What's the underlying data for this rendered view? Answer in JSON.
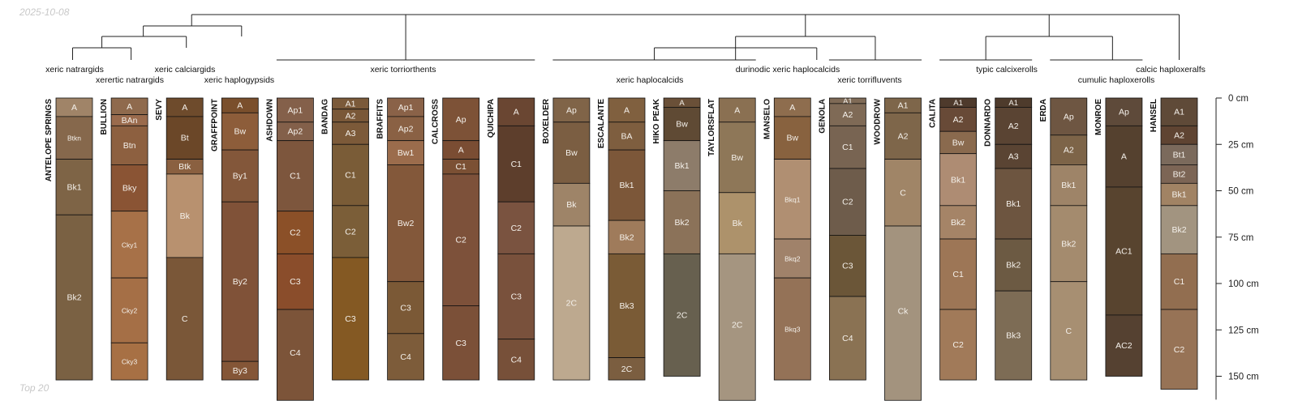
{
  "date_label": "2025-10-08",
  "footer_label": "Top 20",
  "chart_data": {
    "type": "soil-profile-sketch",
    "title": "",
    "depth_axis": {
      "label_unit": "cm",
      "ylim": [
        0,
        160
      ],
      "ticks": [
        {
          "value": 0,
          "label": "0 cm"
        },
        {
          "value": 25,
          "label": "25 cm"
        },
        {
          "value": 50,
          "label": "50 cm"
        },
        {
          "value": 75,
          "label": "75 cm"
        },
        {
          "value": 100,
          "label": "100 cm"
        },
        {
          "value": 125,
          "label": "125 cm"
        },
        {
          "value": 150,
          "label": "150 cm"
        }
      ]
    },
    "taxa_groups": [
      {
        "label": "xeric natrargids",
        "start": 0,
        "end": 0
      },
      {
        "label": "xerertic natrargids",
        "start": 1,
        "end": 1
      },
      {
        "label": "xeric calciargids",
        "start": 2,
        "end": 2
      },
      {
        "label": "xeric haplogypsids",
        "start": 3,
        "end": 3
      },
      {
        "label": "xeric torriorthents",
        "start": 4,
        "end": 8
      },
      {
        "label": "xeric haplocalcids",
        "start": 9,
        "end": 12
      },
      {
        "label": "durinodic xeric haplocalcids",
        "start": 13,
        "end": 13
      },
      {
        "label": "xeric torrifluvents",
        "start": 14,
        "end": 15
      },
      {
        "label": "typic calcixerolls",
        "start": 16,
        "end": 17
      },
      {
        "label": "cumulic haploxerolls",
        "start": 18,
        "end": 19
      },
      {
        "label": "calcic haploxeralfs",
        "start": 20,
        "end": 20
      }
    ],
    "profiles": [
      {
        "name": "ANTELOPE SPRINGS",
        "horizons": [
          {
            "name": "A",
            "top": 0,
            "bottom": 10,
            "color": "#a08468"
          },
          {
            "name": "Btkn",
            "top": 10,
            "bottom": 33,
            "color": "#86684c"
          },
          {
            "name": "Bk1",
            "top": 33,
            "bottom": 63,
            "color": "#7e6446"
          },
          {
            "name": "Bk2",
            "top": 63,
            "bottom": 152,
            "color": "#7a6143"
          }
        ]
      },
      {
        "name": "BULLION",
        "horizons": [
          {
            "name": "A",
            "top": 0,
            "bottom": 9,
            "color": "#8f6a4d"
          },
          {
            "name": "BAn",
            "top": 9,
            "bottom": 15,
            "color": "#9a6b4d"
          },
          {
            "name": "Btn",
            "top": 15,
            "bottom": 36,
            "color": "#8d6040"
          },
          {
            "name": "Bky",
            "top": 36,
            "bottom": 61,
            "color": "#8a5434"
          },
          {
            "name": "Cky1",
            "top": 61,
            "bottom": 97,
            "color": "#a77148"
          },
          {
            "name": "Cky2",
            "top": 97,
            "bottom": 132,
            "color": "#a56f46"
          },
          {
            "name": "Cky3",
            "top": 132,
            "bottom": 152,
            "color": "#a77044"
          }
        ]
      },
      {
        "name": "SEVY",
        "horizons": [
          {
            "name": "A",
            "top": 0,
            "bottom": 10,
            "color": "#6e4b2c"
          },
          {
            "name": "Bt",
            "top": 10,
            "bottom": 33,
            "color": "#6b4728"
          },
          {
            "name": "Btk",
            "top": 33,
            "bottom": 41,
            "color": "#8a6040"
          },
          {
            "name": "Bk",
            "top": 41,
            "bottom": 86,
            "color": "#b8916f"
          },
          {
            "name": "C",
            "top": 86,
            "bottom": 152,
            "color": "#7a5738"
          }
        ]
      },
      {
        "name": "GRAFFPOINT",
        "horizons": [
          {
            "name": "A",
            "top": 0,
            "bottom": 8,
            "color": "#7a4f2c"
          },
          {
            "name": "Bw",
            "top": 8,
            "bottom": 28,
            "color": "#8d5d3a"
          },
          {
            "name": "By1",
            "top": 28,
            "bottom": 56,
            "color": "#83573a"
          },
          {
            "name": "By2",
            "top": 56,
            "bottom": 142,
            "color": "#805238"
          },
          {
            "name": "By3",
            "top": 142,
            "bottom": 152,
            "color": "#845637"
          }
        ]
      },
      {
        "name": "ASHDOWN",
        "horizons": [
          {
            "name": "Ap1",
            "top": 0,
            "bottom": 13,
            "color": "#84604a"
          },
          {
            "name": "Ap2",
            "top": 13,
            "bottom": 23,
            "color": "#83604a"
          },
          {
            "name": "C1",
            "top": 23,
            "bottom": 61,
            "color": "#7d563d"
          },
          {
            "name": "C2",
            "top": 61,
            "bottom": 84,
            "color": "#8b5028"
          },
          {
            "name": "C3",
            "top": 84,
            "bottom": 114,
            "color": "#8a4d2b"
          },
          {
            "name": "C4",
            "top": 114,
            "bottom": 163,
            "color": "#7c5439"
          }
        ]
      },
      {
        "name": "BANDAG",
        "horizons": [
          {
            "name": "A1",
            "top": 0,
            "bottom": 6,
            "color": "#7b5a3a"
          },
          {
            "name": "A2",
            "top": 6,
            "bottom": 13,
            "color": "#7a5838"
          },
          {
            "name": "A3",
            "top": 13,
            "bottom": 25,
            "color": "#7c5a39"
          },
          {
            "name": "C1",
            "top": 25,
            "bottom": 58,
            "color": "#7a5c37"
          },
          {
            "name": "C2",
            "top": 58,
            "bottom": 86,
            "color": "#7b5e38"
          },
          {
            "name": "C3",
            "top": 86,
            "bottom": 152,
            "color": "#845923"
          }
        ]
      },
      {
        "name": "BRAFFITS",
        "horizons": [
          {
            "name": "Ap1",
            "top": 0,
            "bottom": 10,
            "color": "#8a6248"
          },
          {
            "name": "Ap2",
            "top": 10,
            "bottom": 23,
            "color": "#8a6144"
          },
          {
            "name": "Bw1",
            "top": 23,
            "bottom": 36,
            "color": "#9b6c4c"
          },
          {
            "name": "Bw2",
            "top": 36,
            "bottom": 99,
            "color": "#83583a"
          },
          {
            "name": "C3",
            "top": 99,
            "bottom": 127,
            "color": "#7b5936"
          },
          {
            "name": "C4",
            "top": 127,
            "bottom": 152,
            "color": "#7d5c3a"
          }
        ]
      },
      {
        "name": "CALCROSS",
        "horizons": [
          {
            "name": "Ap",
            "top": 0,
            "bottom": 23,
            "color": "#7d5237"
          },
          {
            "name": "A",
            "top": 23,
            "bottom": 33,
            "color": "#7a4d33"
          },
          {
            "name": "C1",
            "top": 33,
            "bottom": 41,
            "color": "#7b5034"
          },
          {
            "name": "C2",
            "top": 41,
            "bottom": 112,
            "color": "#7d513a"
          },
          {
            "name": "C3",
            "top": 112,
            "bottom": 152,
            "color": "#7b5038"
          }
        ]
      },
      {
        "name": "QUICHIPA",
        "horizons": [
          {
            "name": "A",
            "top": 0,
            "bottom": 15,
            "color": "#6a4632"
          },
          {
            "name": "C1",
            "top": 15,
            "bottom": 56,
            "color": "#5d3e2c"
          },
          {
            "name": "C2",
            "top": 56,
            "bottom": 84,
            "color": "#7a5340"
          },
          {
            "name": "C3",
            "top": 84,
            "bottom": 130,
            "color": "#79513c"
          },
          {
            "name": "C4",
            "top": 130,
            "bottom": 152,
            "color": "#775039"
          }
        ]
      },
      {
        "name": "BOXELDER",
        "horizons": [
          {
            "name": "Ap",
            "top": 0,
            "bottom": 13,
            "color": "#806448"
          },
          {
            "name": "Bw",
            "top": 13,
            "bottom": 46,
            "color": "#7b5e42"
          },
          {
            "name": "Bk",
            "top": 46,
            "bottom": 69,
            "color": "#9e8468"
          },
          {
            "name": "2C",
            "top": 69,
            "bottom": 152,
            "color": "#bda98f"
          }
        ]
      },
      {
        "name": "ESCALANTE",
        "horizons": [
          {
            "name": "A",
            "top": 0,
            "bottom": 13,
            "color": "#80603f"
          },
          {
            "name": "BA",
            "top": 13,
            "bottom": 28,
            "color": "#7e5e3f"
          },
          {
            "name": "Bk1",
            "top": 28,
            "bottom": 66,
            "color": "#7c5739"
          },
          {
            "name": "Bk2",
            "top": 66,
            "bottom": 84,
            "color": "#9f7b5b"
          },
          {
            "name": "Bk3",
            "top": 84,
            "bottom": 140,
            "color": "#7a5b36"
          },
          {
            "name": "2C",
            "top": 140,
            "bottom": 152,
            "color": "#7b5e40"
          }
        ]
      },
      {
        "name": "HIKO PEAK",
        "horizons": [
          {
            "name": "A",
            "top": 0,
            "bottom": 5,
            "color": "#6a5038"
          },
          {
            "name": "Bw",
            "top": 5,
            "bottom": 23,
            "color": "#5f4a34"
          },
          {
            "name": "Bk1",
            "top": 23,
            "bottom": 50,
            "color": "#8d7c6a"
          },
          {
            "name": "Bk2",
            "top": 50,
            "bottom": 84,
            "color": "#8b7259"
          },
          {
            "name": "2C",
            "top": 84,
            "bottom": 150,
            "color": "#67604f"
          }
        ]
      },
      {
        "name": "TAYLORSFLAT",
        "horizons": [
          {
            "name": "A",
            "top": 0,
            "bottom": 13,
            "color": "#8a7052"
          },
          {
            "name": "Bw",
            "top": 13,
            "bottom": 51,
            "color": "#8e7758"
          },
          {
            "name": "Bk",
            "top": 51,
            "bottom": 84,
            "color": "#ad926b"
          },
          {
            "name": "2C",
            "top": 84,
            "bottom": 163,
            "color": "#a59580"
          }
        ]
      },
      {
        "name": "MANSELO",
        "horizons": [
          {
            "name": "A",
            "top": 0,
            "bottom": 10,
            "color": "#8e6d4e"
          },
          {
            "name": "Bw",
            "top": 10,
            "bottom": 33,
            "color": "#88623f"
          },
          {
            "name": "Bkq1",
            "top": 33,
            "bottom": 76,
            "color": "#b08f72"
          },
          {
            "name": "Bkq2",
            "top": 76,
            "bottom": 97,
            "color": "#a0826a"
          },
          {
            "name": "Bkq3",
            "top": 97,
            "bottom": 152,
            "color": "#947257"
          }
        ]
      },
      {
        "name": "GENOLA",
        "horizons": [
          {
            "name": "A1",
            "top": 0,
            "bottom": 3,
            "color": "#7f6a56"
          },
          {
            "name": "A2",
            "top": 3,
            "bottom": 15,
            "color": "#7f6a56"
          },
          {
            "name": "C1",
            "top": 15,
            "bottom": 38,
            "color": "#786452"
          },
          {
            "name": "C2",
            "top": 38,
            "bottom": 74,
            "color": "#6e5c4b"
          },
          {
            "name": "C3",
            "top": 74,
            "bottom": 107,
            "color": "#6b5638"
          },
          {
            "name": "C4",
            "top": 107,
            "bottom": 152,
            "color": "#8a7253"
          }
        ]
      },
      {
        "name": "WOODROW",
        "horizons": [
          {
            "name": "A1",
            "top": 0,
            "bottom": 8,
            "color": "#7e664a"
          },
          {
            "name": "A2",
            "top": 8,
            "bottom": 33,
            "color": "#7e664a"
          },
          {
            "name": "C",
            "top": 33,
            "bottom": 69,
            "color": "#a08567"
          },
          {
            "name": "Ck",
            "top": 69,
            "bottom": 163,
            "color": "#a3937e"
          }
        ]
      },
      {
        "name": "CALITA",
        "horizons": [
          {
            "name": "A1",
            "top": 0,
            "bottom": 5,
            "color": "#4e3a2c"
          },
          {
            "name": "A2",
            "top": 5,
            "bottom": 18,
            "color": "#684a37"
          },
          {
            "name": "Bw",
            "top": 18,
            "bottom": 30,
            "color": "#8a6a4e"
          },
          {
            "name": "Bk1",
            "top": 30,
            "bottom": 58,
            "color": "#ae8c73"
          },
          {
            "name": "Bk2",
            "top": 58,
            "bottom": 76,
            "color": "#a58467"
          },
          {
            "name": "C1",
            "top": 76,
            "bottom": 114,
            "color": "#9d7656"
          },
          {
            "name": "C2",
            "top": 114,
            "bottom": 152,
            "color": "#a17a59"
          }
        ]
      },
      {
        "name": "DONNARDO",
        "horizons": [
          {
            "name": "A1",
            "top": 0,
            "bottom": 5,
            "color": "#4e3b2c"
          },
          {
            "name": "A2",
            "top": 5,
            "bottom": 25,
            "color": "#5a4433"
          },
          {
            "name": "A3",
            "top": 25,
            "bottom": 38,
            "color": "#5a4433"
          },
          {
            "name": "Bk1",
            "top": 38,
            "bottom": 76,
            "color": "#6d5540"
          },
          {
            "name": "Bk2",
            "top": 76,
            "bottom": 104,
            "color": "#6c5a43"
          },
          {
            "name": "Bk3",
            "top": 104,
            "bottom": 152,
            "color": "#7d6c55"
          }
        ]
      },
      {
        "name": "ERDA",
        "horizons": [
          {
            "name": "Ap",
            "top": 0,
            "bottom": 20,
            "color": "#6e5642"
          },
          {
            "name": "A2",
            "top": 20,
            "bottom": 36,
            "color": "#7d6448"
          },
          {
            "name": "Bk1",
            "top": 36,
            "bottom": 58,
            "color": "#9e8468"
          },
          {
            "name": "Bk2",
            "top": 58,
            "bottom": 99,
            "color": "#a48b6e"
          },
          {
            "name": "C",
            "top": 99,
            "bottom": 152,
            "color": "#a78f72"
          }
        ]
      },
      {
        "name": "MONROE",
        "horizons": [
          {
            "name": "Ap",
            "top": 0,
            "bottom": 15,
            "color": "#5e4a3a"
          },
          {
            "name": "A",
            "top": 15,
            "bottom": 48,
            "color": "#55412f"
          },
          {
            "name": "AC1",
            "top": 48,
            "bottom": 117,
            "color": "#58442f"
          },
          {
            "name": "AC2",
            "top": 117,
            "bottom": 150,
            "color": "#554131"
          }
        ]
      },
      {
        "name": "HANSEL",
        "horizons": [
          {
            "name": "A1",
            "top": 0,
            "bottom": 15,
            "color": "#5f4a38"
          },
          {
            "name": "A2",
            "top": 15,
            "bottom": 25,
            "color": "#5f4432"
          },
          {
            "name": "Bt1",
            "top": 25,
            "bottom": 36,
            "color": "#7b6a5c"
          },
          {
            "name": "Bt2",
            "top": 36,
            "bottom": 46,
            "color": "#7c6555"
          },
          {
            "name": "Bk1",
            "top": 46,
            "bottom": 58,
            "color": "#a18364"
          },
          {
            "name": "Bk2",
            "top": 58,
            "bottom": 84,
            "color": "#a29480"
          },
          {
            "name": "C1",
            "top": 84,
            "bottom": 114,
            "color": "#926e50"
          },
          {
            "name": "C2",
            "top": 114,
            "bottom": 157,
            "color": "#977356"
          }
        ]
      }
    ]
  }
}
